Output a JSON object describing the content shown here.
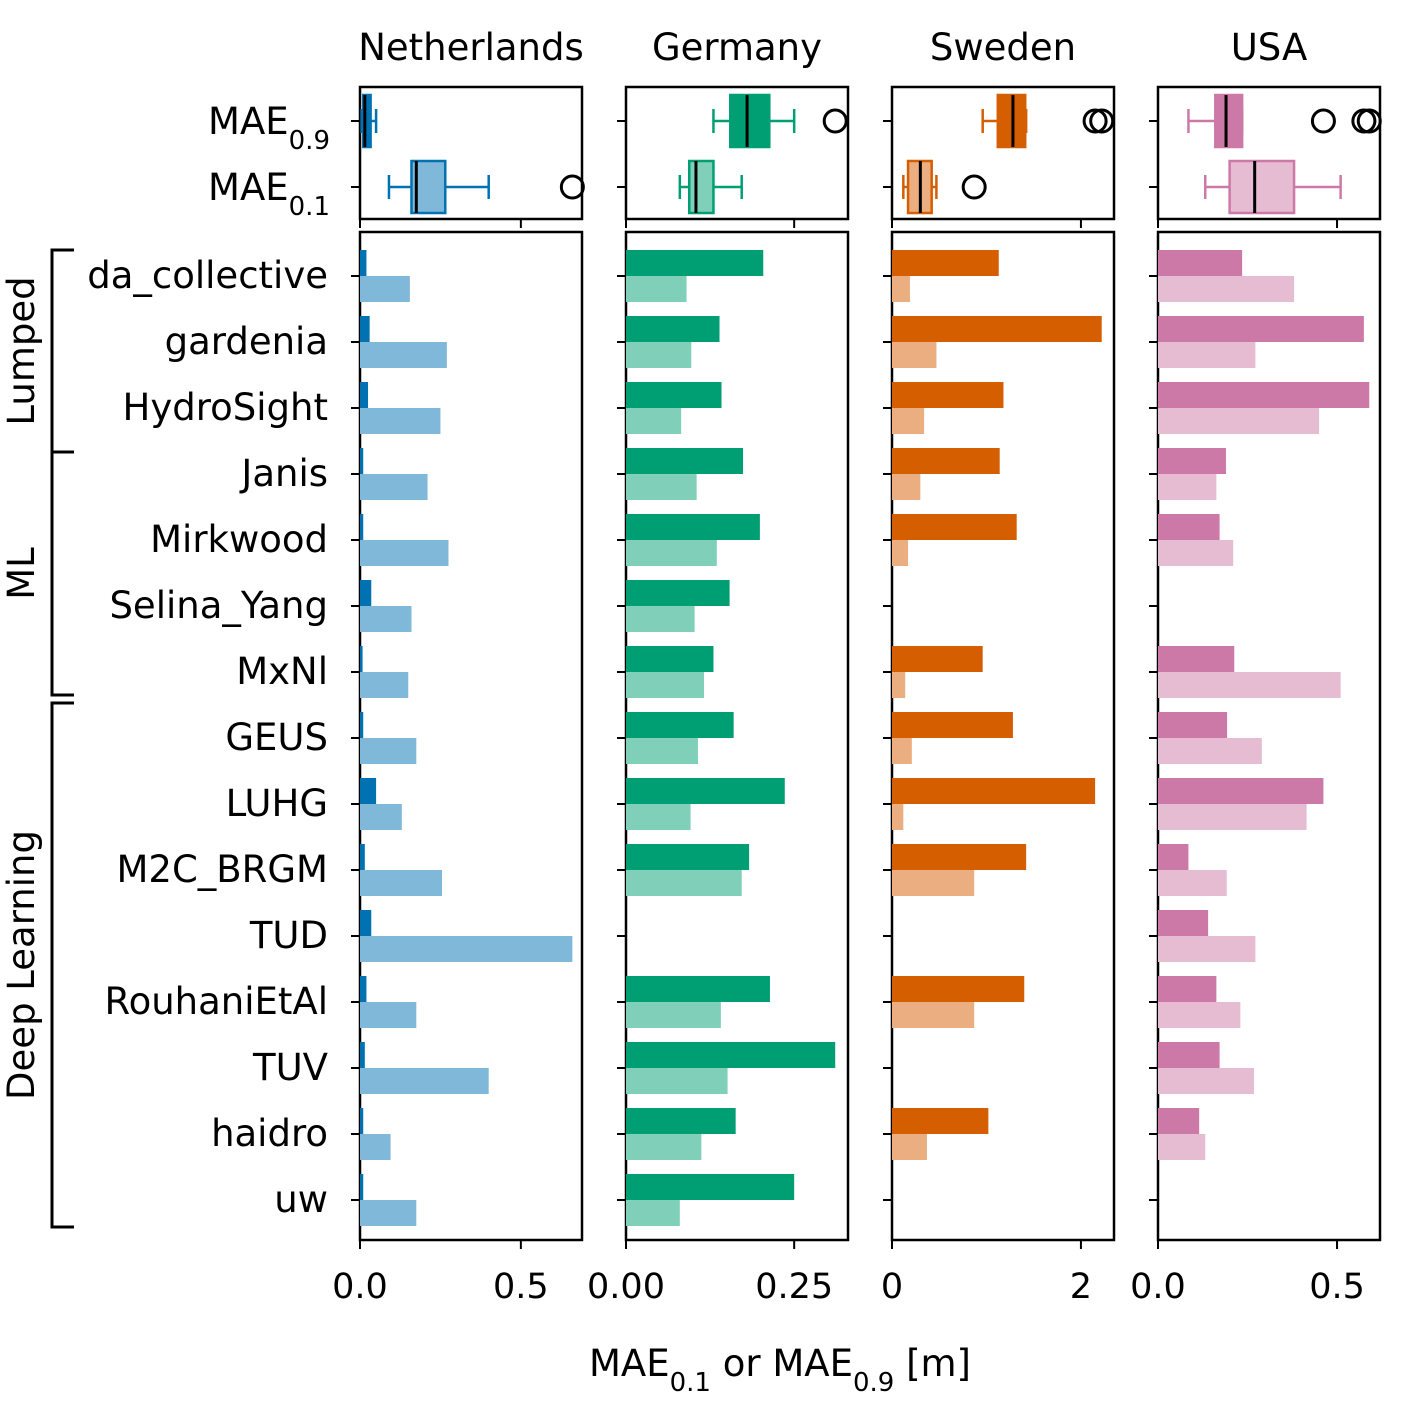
{
  "chart_data": {
    "type": "bar",
    "xlabel": {
      "main": "MAE",
      "sub_a": "0.1",
      "mid": " or MAE",
      "sub_b": "0.9",
      "unit": " [m]"
    },
    "box_labels": [
      {
        "main": "MAE",
        "sub": "0.9"
      },
      {
        "main": "MAE",
        "sub": "0.1"
      }
    ],
    "groups": [
      {
        "label": "Lumped",
        "models": [
          "da_collective",
          "gardenia",
          "HydroSight"
        ]
      },
      {
        "label": "ML",
        "models": [
          "Janis",
          "Mirkwood",
          "Selina_Yang",
          "MxNl"
        ]
      },
      {
        "label": "Deep Learning",
        "models": [
          "GEUS",
          "LUHG",
          "M2C_BRGM",
          "TUD",
          "RouhaniEtAl",
          "TUV",
          "haidro",
          "uw"
        ]
      }
    ],
    "models": [
      "da_collective",
      "gardenia",
      "HydroSight",
      "Janis",
      "Mirkwood",
      "Selina_Yang",
      "MxNl",
      "GEUS",
      "LUHG",
      "M2C_BRGM",
      "TUD",
      "RouhaniEtAl",
      "TUV",
      "haidro",
      "uw"
    ],
    "panels": [
      {
        "title": "Netherlands",
        "dark_color": "#0072b2",
        "light_color": "#80b8d9",
        "xlim": [
          0,
          0.69
        ],
        "ticks": [
          0.0,
          0.5
        ],
        "tick_labels": [
          "0.0",
          "0.5"
        ],
        "mae09": [
          0.02,
          0.03,
          0.025,
          0.01,
          0.01,
          0.035,
          0.008,
          0.01,
          0.05,
          0.015,
          0.035,
          0.02,
          0.015,
          0.01,
          0.01
        ],
        "mae01": [
          0.155,
          0.27,
          0.25,
          0.21,
          0.275,
          0.16,
          0.15,
          0.175,
          0.13,
          0.255,
          0.66,
          0.175,
          0.4,
          0.095,
          0.175
        ],
        "box09": {
          "q1": 0.01,
          "med": 0.015,
          "q3": 0.033,
          "wlo": 0.005,
          "whi": 0.05,
          "fliers": []
        },
        "box01": {
          "q1": 0.16,
          "med": 0.175,
          "q3": 0.265,
          "wlo": 0.09,
          "whi": 0.4,
          "fliers": [
            0.66
          ]
        }
      },
      {
        "title": "Germany",
        "dark_color": "#009e73",
        "light_color": "#80cfb9",
        "xlim": [
          0,
          0.33
        ],
        "ticks": [
          0.0,
          0.25
        ],
        "tick_labels": [
          "0.00",
          "0.25"
        ],
        "mae09": [
          0.204,
          0.139,
          0.142,
          0.174,
          0.199,
          0.154,
          0.13,
          0.16,
          0.236,
          0.183,
          null,
          0.214,
          0.311,
          0.163,
          0.25
        ],
        "mae01": [
          0.09,
          0.097,
          0.082,
          0.105,
          0.135,
          0.102,
          0.116,
          0.107,
          0.096,
          0.172,
          null,
          0.141,
          0.151,
          0.112,
          0.08
        ],
        "box09": {
          "q1": 0.155,
          "med": 0.18,
          "q3": 0.213,
          "wlo": 0.13,
          "whi": 0.25,
          "fliers": [
            0.311
          ]
        },
        "box01": {
          "q1": 0.094,
          "med": 0.104,
          "q3": 0.13,
          "wlo": 0.08,
          "whi": 0.172,
          "fliers": []
        }
      },
      {
        "title": "Sweden",
        "dark_color": "#d55e00",
        "light_color": "#eaae80",
        "xlim": [
          0,
          2.35
        ],
        "ticks": [
          0,
          2
        ],
        "tick_labels": [
          "0",
          "2"
        ],
        "mae09": [
          1.13,
          2.22,
          1.18,
          1.14,
          1.32,
          null,
          0.96,
          1.28,
          2.15,
          1.42,
          null,
          1.4,
          null,
          1.02,
          null
        ],
        "mae01": [
          0.19,
          0.47,
          0.34,
          0.3,
          0.17,
          null,
          0.14,
          0.21,
          0.12,
          0.87,
          null,
          0.87,
          null,
          0.37,
          null
        ],
        "box09": {
          "q1": 1.12,
          "med": 1.28,
          "q3": 1.41,
          "wlo": 0.96,
          "whi": 1.42,
          "fliers": [
            2.15,
            2.22
          ]
        },
        "box01": {
          "q1": 0.17,
          "med": 0.3,
          "q3": 0.42,
          "wlo": 0.12,
          "whi": 0.47,
          "fliers": [
            0.87
          ]
        }
      },
      {
        "title": "USA",
        "dark_color": "#cc79a7",
        "light_color": "#e6bcd3",
        "xlim": [
          0,
          0.62
        ],
        "ticks": [
          0.0,
          0.5
        ],
        "tick_labels": [
          "0.0",
          "0.5"
        ],
        "mae09": [
          0.235,
          0.575,
          0.59,
          0.19,
          0.172,
          null,
          0.213,
          0.193,
          0.462,
          0.085,
          0.14,
          0.163,
          0.172,
          0.115,
          null
        ],
        "mae01": [
          0.38,
          0.272,
          0.45,
          0.163,
          0.21,
          null,
          0.51,
          0.29,
          0.415,
          0.192,
          0.272,
          0.23,
          0.268,
          0.132,
          null
        ],
        "box09": {
          "q1": 0.16,
          "med": 0.19,
          "q3": 0.235,
          "wlo": 0.085,
          "whi": 0.235,
          "fliers": [
            0.462,
            0.575,
            0.59
          ]
        },
        "box01": {
          "q1": 0.2,
          "med": 0.27,
          "q3": 0.38,
          "wlo": 0.132,
          "whi": 0.51,
          "fliers": []
        }
      }
    ]
  }
}
